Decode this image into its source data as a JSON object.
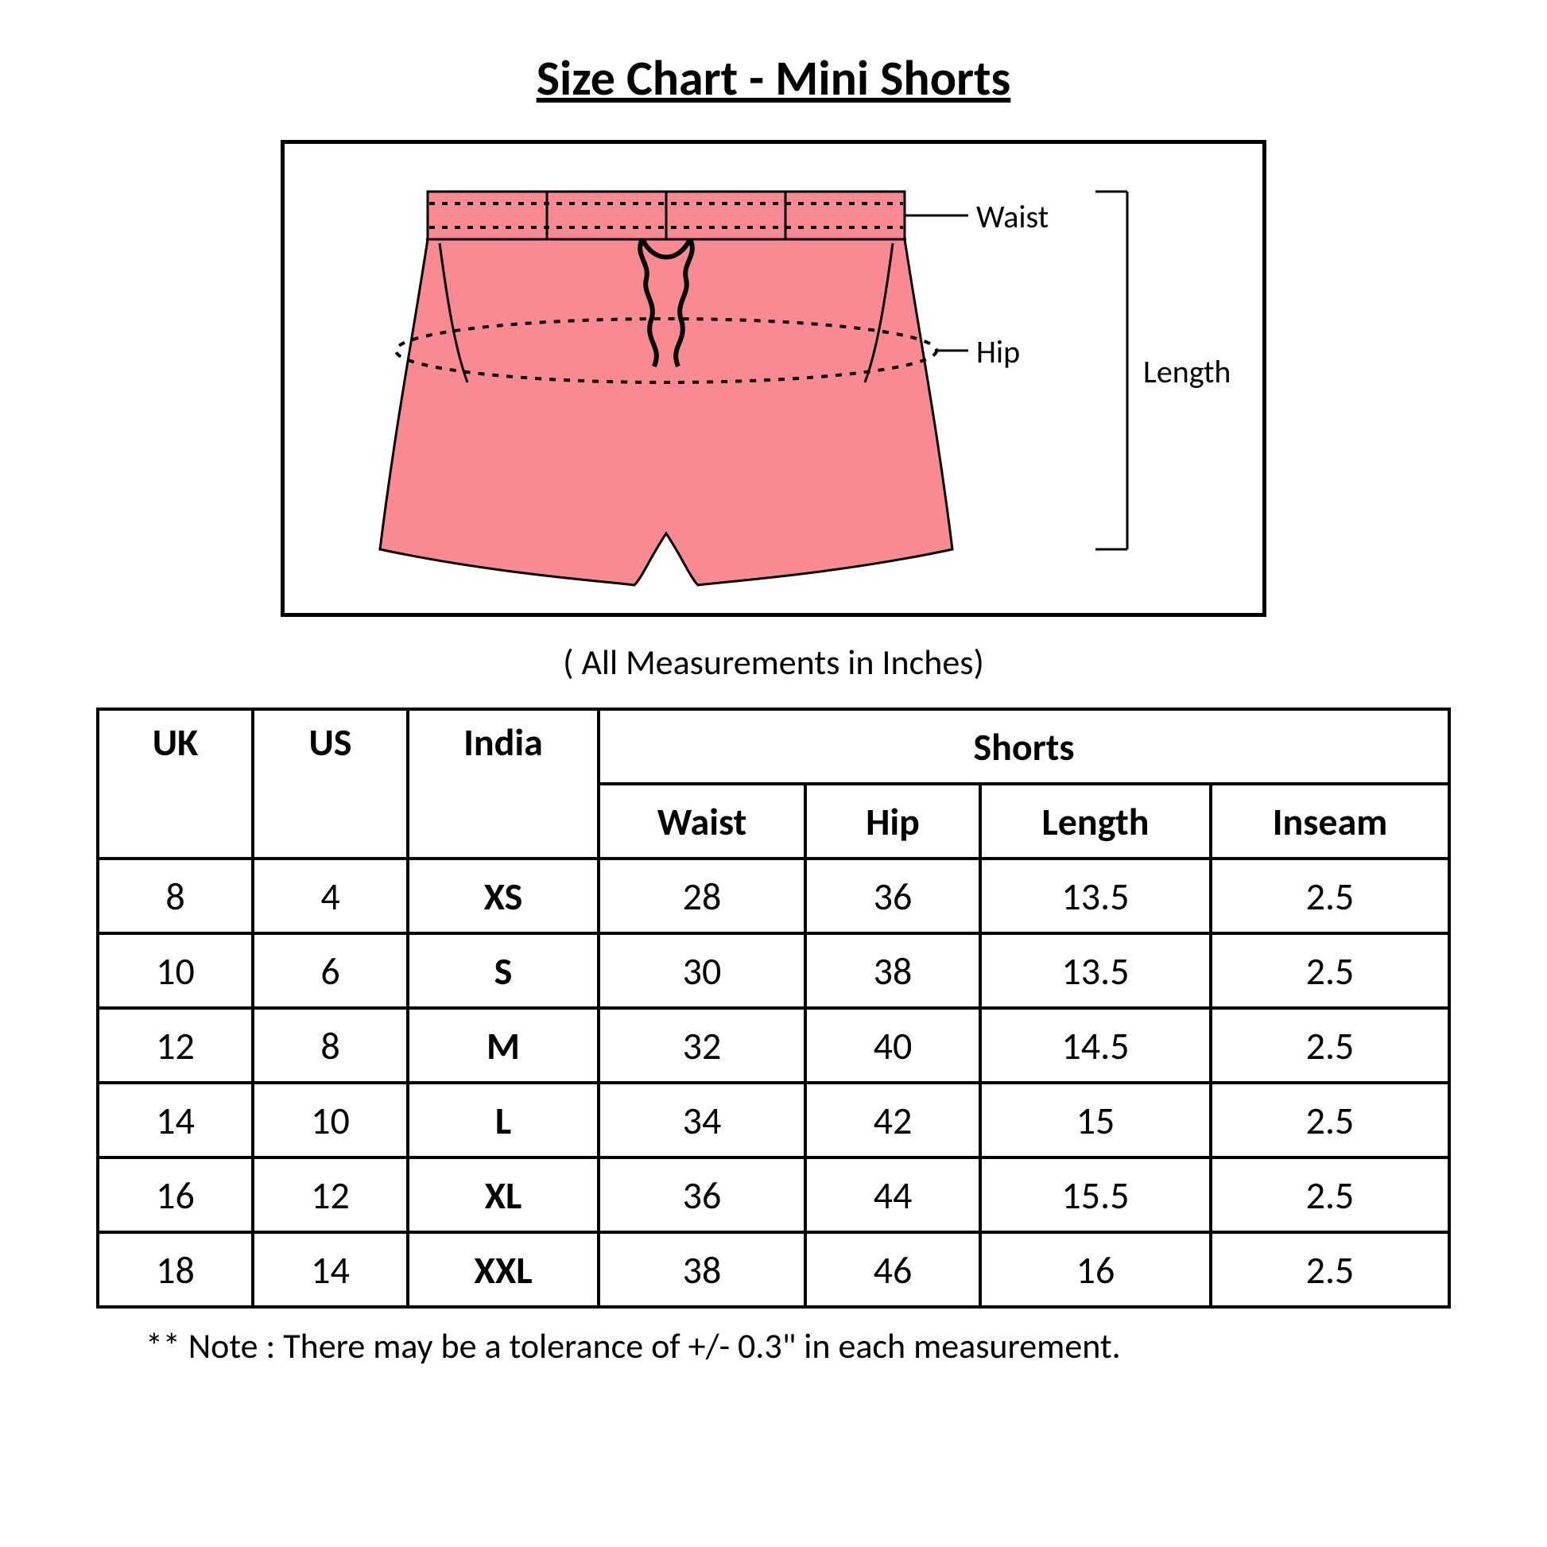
{
  "title": "Size Chart - Mini Shorts",
  "subtitle": "( All Measurements in Inches)",
  "note": "** Note : There may be a tolerance of +/- 0.3\" in each measurement.",
  "diagram": {
    "labels": {
      "waist": "Waist",
      "hip": "Hip",
      "length": "Length"
    },
    "colors": {
      "fill": "#fa8a92",
      "stroke": "#000000",
      "border": "#000000",
      "background": "#ffffff"
    },
    "stroke_width": 3,
    "dash_pattern": "8,10",
    "label_fontsize": 40
  },
  "table": {
    "group_headers": {
      "uk": "UK",
      "us": "US",
      "india": "India",
      "shorts": "Shorts"
    },
    "sub_headers": {
      "waist": "Waist",
      "hip": "Hip",
      "length": "Length",
      "inseam": "Inseam"
    },
    "rows": [
      {
        "uk": "8",
        "us": "4",
        "india": "XS",
        "waist": "28",
        "hip": "36",
        "length": "13.5",
        "inseam": "2.5"
      },
      {
        "uk": "10",
        "us": "6",
        "india": "S",
        "waist": "30",
        "hip": "38",
        "length": "13.5",
        "inseam": "2.5"
      },
      {
        "uk": "12",
        "us": "8",
        "india": "M",
        "waist": "32",
        "hip": "40",
        "length": "14.5",
        "inseam": "2.5"
      },
      {
        "uk": "14",
        "us": "10",
        "india": "L",
        "waist": "34",
        "hip": "42",
        "length": "15",
        "inseam": "2.5"
      },
      {
        "uk": "16",
        "us": "12",
        "india": "XL",
        "waist": "36",
        "hip": "44",
        "length": "15.5",
        "inseam": "2.5"
      },
      {
        "uk": "18",
        "us": "14",
        "india": "XXL",
        "waist": "38",
        "hip": "46",
        "length": "16",
        "inseam": "2.5"
      }
    ],
    "border_color": "#000000",
    "font_size": 48,
    "header_font_weight": "bold"
  }
}
